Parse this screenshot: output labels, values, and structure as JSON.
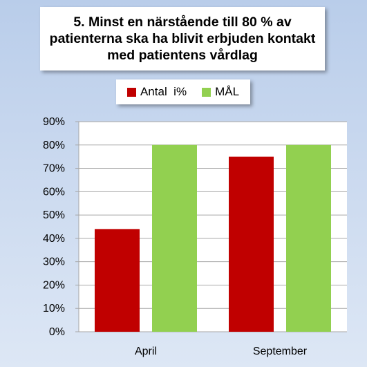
{
  "chart_data": {
    "type": "bar",
    "title": "5. Minst en närstående till 80 % av patienterna ska ha blivit erbjuden kontakt med patientens vårdlag",
    "title_lines": [
      "5. Minst en närstående till 80 % av",
      "patienterna ska ha blivit erbjuden kontakt",
      "med patientens vårdlag"
    ],
    "categories": [
      "April",
      "September"
    ],
    "series": [
      {
        "name": "Antal  i%",
        "color": "#c00000",
        "values": [
          44,
          75
        ]
      },
      {
        "name": "MÅL",
        "color": "#92d050",
        "values": [
          80,
          80
        ]
      }
    ],
    "xlabel": "",
    "ylabel": "",
    "ylim": [
      0,
      90
    ],
    "yticks": [
      "0%",
      "10%",
      "20%",
      "30%",
      "40%",
      "50%",
      "60%",
      "70%",
      "80%",
      "90%"
    ],
    "grid": true,
    "legend_position": "top"
  }
}
